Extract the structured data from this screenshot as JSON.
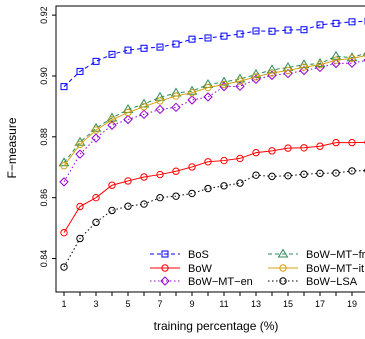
{
  "chart_data": {
    "type": "line",
    "title": "",
    "xlabel": "training percentage (%)",
    "ylabel": "F−measure",
    "xlim": [
      0.5,
      20
    ],
    "ylim": [
      0.829,
      0.923
    ],
    "x_ticks": [
      1,
      2,
      3,
      4,
      5,
      6,
      7,
      8,
      9,
      10,
      11,
      12,
      13,
      14,
      15,
      16,
      17,
      18,
      19,
      20
    ],
    "x_tick_labels": [
      "1",
      "3",
      "5",
      "7",
      "9",
      "11",
      "13",
      "15",
      "17",
      "19"
    ],
    "x_tick_label_values": [
      1,
      3,
      5,
      7,
      9,
      11,
      13,
      15,
      17,
      19
    ],
    "y_ticks": [
      0.84,
      0.86,
      0.88,
      0.9,
      0.92
    ],
    "y_tick_labels": [
      "0.84",
      "0.86",
      "0.88",
      "0.90",
      "0.92"
    ],
    "grid": false,
    "legend_position": "bottom-right",
    "x": [
      1,
      2,
      3,
      4,
      5,
      6,
      7,
      8,
      9,
      10,
      11,
      12,
      13,
      14,
      15,
      16,
      17,
      18,
      19,
      20
    ],
    "series": [
      {
        "name": "BoS",
        "color": "#0000ff",
        "line": "dashed",
        "marker": "square",
        "values": [
          0.8965,
          0.9015,
          0.9048,
          0.9071,
          0.9085,
          0.9091,
          0.9095,
          0.9105,
          0.9121,
          0.9125,
          0.9131,
          0.9138,
          0.9148,
          0.9147,
          0.9151,
          0.9152,
          0.9168,
          0.9173,
          0.9178,
          0.918
        ]
      },
      {
        "name": "BoW",
        "color": "#ff0000",
        "line": "solid",
        "marker": "circle",
        "values": [
          0.8485,
          0.8571,
          0.86,
          0.8641,
          0.8655,
          0.8668,
          0.8676,
          0.8687,
          0.8701,
          0.8718,
          0.8722,
          0.8729,
          0.8748,
          0.8754,
          0.8763,
          0.8764,
          0.8769,
          0.8781,
          0.8781,
          0.8782
        ]
      },
      {
        "name": "BoW−MT−en",
        "color": "#9400d3",
        "line": "dotted",
        "marker": "diamond",
        "values": [
          0.8652,
          0.8743,
          0.8796,
          0.8838,
          0.8857,
          0.8874,
          0.889,
          0.8897,
          0.8921,
          0.8931,
          0.8965,
          0.8966,
          0.8989,
          0.9002,
          0.9008,
          0.9018,
          0.9028,
          0.9041,
          0.9042,
          0.9052
        ]
      },
      {
        "name": "BoW−MT−fr",
        "color": "#2e8b57",
        "line": "dashed",
        "marker": "triangle",
        "values": [
          0.8715,
          0.8782,
          0.8828,
          0.8862,
          0.889,
          0.8908,
          0.893,
          0.8944,
          0.895,
          0.8972,
          0.898,
          0.899,
          0.9005,
          0.902,
          0.9028,
          0.9037,
          0.9041,
          0.9065,
          0.906,
          0.9078
        ]
      },
      {
        "name": "BoW−MT−it",
        "color": "#d4a017",
        "line": "solid",
        "marker": "circle",
        "values": [
          0.8705,
          0.8775,
          0.8822,
          0.8856,
          0.888,
          0.8899,
          0.8918,
          0.8934,
          0.8945,
          0.8962,
          0.8972,
          0.8983,
          0.8997,
          0.901,
          0.9018,
          0.9029,
          0.9037,
          0.9052,
          0.9058,
          0.9068
        ]
      },
      {
        "name": "BoW−LSA",
        "color": "#000000",
        "line": "dotted",
        "marker": "circle",
        "values": [
          0.8372,
          0.8466,
          0.8519,
          0.8558,
          0.8572,
          0.8579,
          0.86,
          0.8605,
          0.8614,
          0.863,
          0.8639,
          0.8648,
          0.8674,
          0.867,
          0.8672,
          0.8677,
          0.868,
          0.8681,
          0.8688,
          0.8689
        ]
      }
    ]
  }
}
